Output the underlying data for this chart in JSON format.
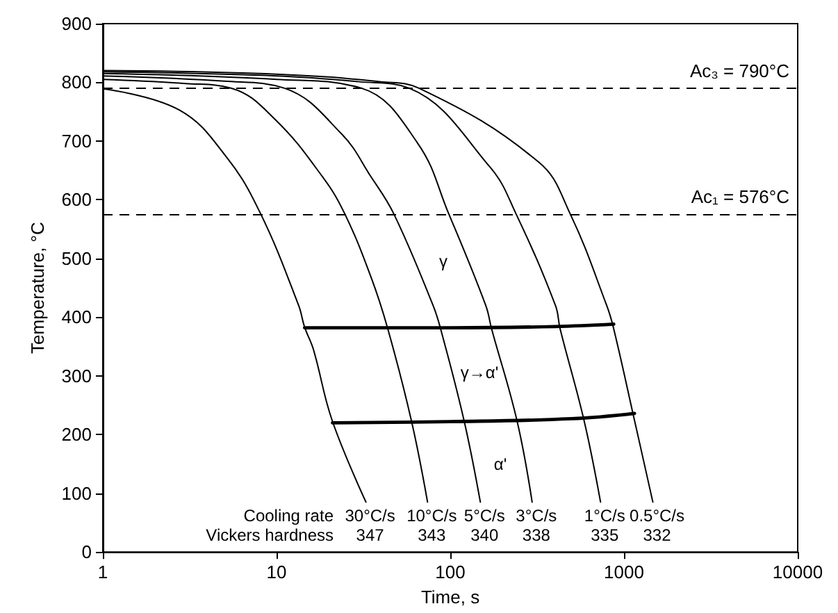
{
  "chart_data": {
    "type": "line",
    "xlabel": "Time, s",
    "ylabel": "Temperature, °C",
    "log": "x",
    "xlim": [
      1,
      10000
    ],
    "xticks": [
      1,
      10,
      100,
      1000,
      10000
    ],
    "ylim": [
      0,
      900
    ],
    "yticks": [
      0,
      100,
      200,
      300,
      400,
      500,
      600,
      700,
      800,
      900
    ],
    "grid": false,
    "marker": "none",
    "line_style": "solid",
    "series": [
      {
        "name": "30°C/s",
        "color": "#000000",
        "x": [
          1,
          2.75,
          5.2,
          8.1,
          13.4,
          14.5,
          16.3,
          20.9,
          32.7
        ],
        "values": [
          789,
          753,
          671,
          576,
          420,
          383,
          345,
          224,
          85
        ]
      },
      {
        "name": "10°C/s",
        "color": "#000000",
        "x": [
          1,
          3,
          5.5,
          9.8,
          18.4,
          24.7,
          35,
          43.7,
          59.7,
          74
        ],
        "values": [
          805,
          798,
          790,
          737,
          639,
          576,
          468,
          380,
          224,
          85
        ]
      },
      {
        "name": "5°C/s",
        "color": "#000000",
        "x": [
          1,
          5,
          11.1,
          23.7,
          35,
          47.3,
          79.6,
          88,
          120,
          149
        ],
        "values": [
          811,
          802,
          790,
          712,
          639,
          576,
          420,
          380,
          224,
          85
        ]
      },
      {
        "name": "3°C/s",
        "color": "#000000",
        "x": [
          1,
          10,
          30.8,
          65,
          98,
          160,
          173,
          242,
          296
        ],
        "values": [
          815,
          805,
          790,
          696,
          576,
          420,
          380,
          224,
          85
        ]
      },
      {
        "name": "1°C/s",
        "color": "#000000",
        "x": [
          1,
          10,
          30,
          58,
          170,
          239,
          403,
          429,
          589,
          733
        ],
        "values": [
          818,
          811,
          801,
          790,
          655,
          576,
          420,
          380,
          224,
          85
        ]
      },
      {
        "name": "0.5°C/s",
        "color": "#000000",
        "x": [
          1,
          10,
          40,
          66,
          323,
          490,
          795,
          873,
          1150,
          1466
        ],
        "values": [
          820,
          814,
          801,
          790,
          664,
          576,
          420,
          380,
          224,
          85
        ]
      },
      {
        "color": "#000000",
        "x": [
          14.5,
          100,
          400,
          873
        ],
        "values": [
          382,
          382,
          384,
          388
        ]
      },
      {
        "color": "#000000",
        "x": [
          21,
          100,
          500,
          1150
        ],
        "values": [
          220,
          222,
          227,
          236
        ]
      }
    ],
    "ref_lines": [
      {
        "axis": "y",
        "value": 790,
        "label": "Ac₃ = 790°C",
        "line_style": "dashed",
        "color": "#000000"
      },
      {
        "axis": "y",
        "value": 576,
        "label": "Ac₁ = 576°C",
        "line_style": "dashed",
        "color": "#000000"
      }
    ],
    "annotations": [
      "γ",
      "γ→α'",
      "α'",
      "Cooling rate",
      "Vickers hardness",
      "347",
      "343",
      "340",
      "338",
      "335",
      "332"
    ]
  }
}
